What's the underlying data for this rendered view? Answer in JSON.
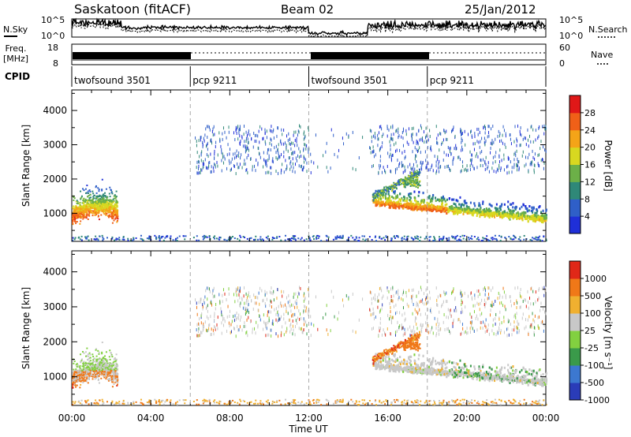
{
  "header": {
    "station": "Saskatoon (fitACF)",
    "beam": "Beam 02",
    "date": "25/Jan/2012"
  },
  "labels": {
    "nsky": "N.Sky",
    "nsearch": "N.Search",
    "freq_line1": "Freq.",
    "freq_line2": "[MHz]",
    "nave": "Nave",
    "cpid": "CPID",
    "nsky_ticks": [
      "10^5",
      "10^0"
    ],
    "nsearch_ticks": [
      "10^5",
      "10^0"
    ],
    "freq_ticks": [
      "18",
      "8"
    ],
    "nave_ticks": [
      "60",
      "0"
    ]
  },
  "cpid_segments": [
    {
      "label": "twofsound 3501",
      "start_hr": 0,
      "end_hr": 6
    },
    {
      "label": "pcp 9211",
      "start_hr": 6,
      "end_hr": 12
    },
    {
      "label": "twofsound 3501",
      "start_hr": 12,
      "end_hr": 18
    },
    {
      "label": "pcp 9211",
      "start_hr": 18,
      "end_hr": 24
    }
  ],
  "axes": {
    "ylabel": "Slant Range [km]",
    "xlabel": "Time UT",
    "y_ticks": [
      "1000",
      "2000",
      "3000",
      "4000"
    ],
    "x_ticks": [
      "00:00",
      "04:00",
      "08:00",
      "12:00",
      "16:00",
      "20:00",
      "00:00"
    ]
  },
  "colorbars": {
    "power": {
      "label": "Power [dB]",
      "ticks": [
        "4",
        "8",
        "12",
        "16",
        "20",
        "24",
        "28"
      ],
      "colors": [
        "#1f2fd8",
        "#2f5fc8",
        "#2f8878",
        "#6cb048",
        "#d8d820",
        "#f4a418",
        "#f06018",
        "#e01818"
      ]
    },
    "velocity": {
      "label": "Velocity [m s⁻¹]",
      "ticks": [
        "1000",
        "500",
        "100",
        "25",
        "-25",
        "-100",
        "-500",
        "-1000"
      ],
      "colors": [
        "#2a3cb8",
        "#3c78d0",
        "#3a9a4a",
        "#82d040",
        "#c8c8c8",
        "#f0b030",
        "#f07818",
        "#e02818"
      ]
    }
  },
  "chart_data": [
    {
      "type": "heatmap",
      "title": "Power",
      "x_range_hr": [
        0,
        24
      ],
      "y_range_km": [
        180,
        4600
      ],
      "regions": [
        {
          "t0": 0.0,
          "t1": 2.3,
          "r0": 400,
          "r1": 2000,
          "level": "high"
        },
        {
          "t0": 15.2,
          "t1": 24.0,
          "r0": 700,
          "r1": 2000,
          "level": "high"
        },
        {
          "t0": 6.2,
          "t1": 24.0,
          "r0": 2200,
          "r1": 3600,
          "level": "low-sparse"
        }
      ]
    },
    {
      "type": "heatmap",
      "title": "Velocity",
      "x_range_hr": [
        0,
        24
      ],
      "y_range_km": [
        180,
        4600
      ],
      "regions": [
        {
          "t0": 0.0,
          "t1": 2.3,
          "r0": 400,
          "r1": 2000,
          "level": "mixed"
        },
        {
          "t0": 15.2,
          "t1": 24.0,
          "r0": 700,
          "r1": 2000,
          "level": "near-zero"
        },
        {
          "t0": 6.2,
          "t1": 24.0,
          "r0": 2200,
          "r1": 3600,
          "level": "sparse"
        }
      ]
    }
  ]
}
